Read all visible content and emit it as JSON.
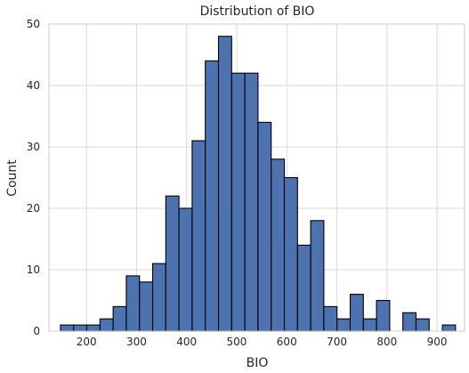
{
  "chart_data": {
    "type": "bar",
    "title": "Distribution of BIO",
    "xlabel": "BIO",
    "ylabel": "Count",
    "xlim": [
      125,
      955
    ],
    "ylim": [
      0,
      50
    ],
    "xticks": [
      200,
      300,
      400,
      500,
      600,
      700,
      800,
      900
    ],
    "yticks": [
      0,
      10,
      20,
      30,
      40,
      50
    ],
    "grid": true,
    "bin_edges": [
      148,
      174.3,
      200.6,
      226.9,
      253.2,
      279.5,
      305.8,
      332.1,
      358.4,
      384.7,
      411.0,
      437.3,
      463.6,
      489.9,
      516.2,
      542.5,
      568.8,
      595.1,
      621.4,
      647.7,
      674.0,
      700.3,
      726.6,
      752.9,
      779.2,
      805.5,
      831.8,
      858.1,
      884.4,
      910.7,
      937.0
    ],
    "counts": [
      1,
      1,
      1,
      2,
      4,
      9,
      8,
      11,
      22,
      20,
      31,
      44,
      48,
      42,
      42,
      34,
      28,
      25,
      14,
      18,
      4,
      2,
      6,
      2,
      5,
      0,
      3,
      2,
      0,
      1
    ],
    "colors": {
      "bar": "#4c72b0",
      "edge": "#000000",
      "grid": "#d9d9d9"
    }
  }
}
